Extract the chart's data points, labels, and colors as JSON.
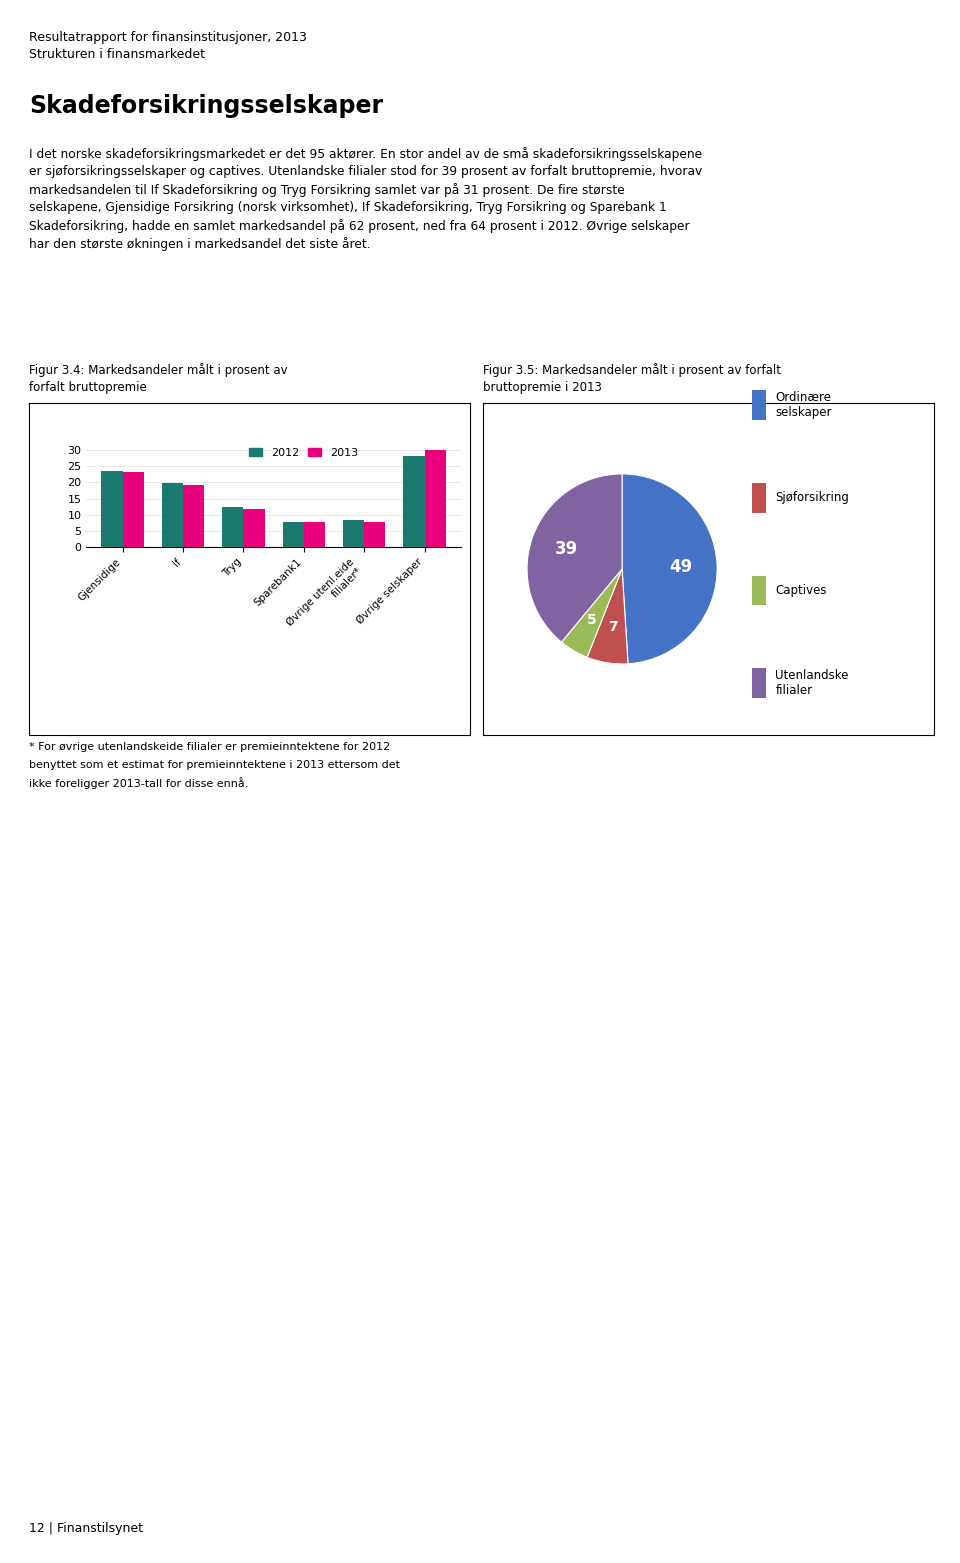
{
  "page_title_line1": "Resultatrapport for finansinstitusjoner, 2013",
  "page_title_line2": "Strukturen i finansmarkedet",
  "section_title": "Skadeforsikringsselskaper",
  "body_text_lines": [
    "I det norske skadeforsikringsmarkedet er det 95 aktører. En stor andel av de små skadeforsikringsselskapene er sjøforsikringsselskaper og captives. Utenlandske filialer stod for 39 prosent av forfalt bruttopremie, hvorav",
    "markedsandelen til If Skadeforsikring og Tryg Forsikring samlet var på 31 prosent. De fire største selskapene, Gjensidige Forsikring (norsk virksomhet), If Skadeforsikring, Tryg Forsikring og Sparebank 1",
    "Skadeforsikring, hadde en samlet markedsandel på 62 prosent, ned fra 64 prosent i 2012. Øvrige selskaper har den største økningen i markedsandel det siste året."
  ],
  "fig34_title": "Figur 3.4: Markedsandeler målt i prosent av\nforfalt bruttopremie",
  "fig35_title": "Figur 3.5: Markedsandeler målt i prosent av forfalt\nbruttopremie i 2013",
  "bar_categories": [
    "Gjensidige",
    "If",
    "Tryg",
    "Sparebank1",
    "Øvrige utenl.eide\nfilialer*",
    "Øvrige selskaper"
  ],
  "bar_2012": [
    23.5,
    19.7,
    12.5,
    7.7,
    8.3,
    28.3
  ],
  "bar_2013": [
    23.2,
    19.2,
    11.8,
    7.8,
    7.9,
    30.0
  ],
  "bar_color_2012": "#1a7a6e",
  "bar_color_2013": "#e8007c",
  "bar_ylim": [
    0,
    30
  ],
  "bar_yticks": [
    0,
    5,
    10,
    15,
    20,
    25,
    30
  ],
  "pie_values": [
    49,
    7,
    5,
    39
  ],
  "pie_label_text": [
    "49",
    "7",
    "5",
    "39"
  ],
  "pie_colors": [
    "#4472c4",
    "#c0504d",
    "#9bbb59",
    "#8064a2"
  ],
  "pie_legend_labels": [
    "Ordinære\nselskaper",
    "Sjøforsikring",
    "Captives",
    "Utenlandske\nfilialer"
  ],
  "footnote_lines": [
    "* For øvrige utenlandskeide filialer er premieinntektene for 2012",
    "benyttet som et estimat for premieinntektene i 2013 ettersom det",
    "ikke foreligger 2013-tall for disse ennå."
  ],
  "page_number": "12 | Finanstilsynet"
}
